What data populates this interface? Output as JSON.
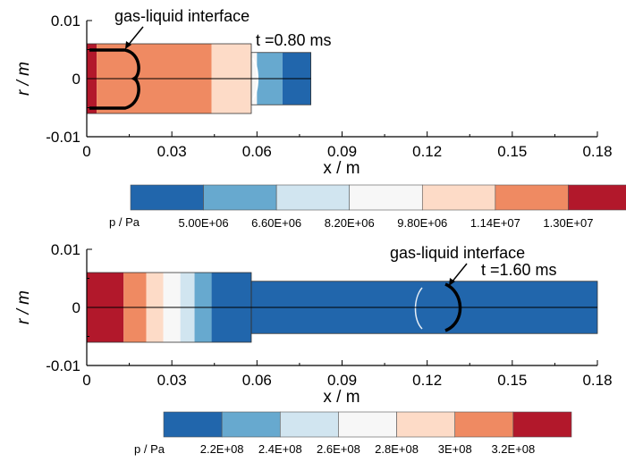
{
  "chart_data": [
    {
      "type": "heatmap",
      "xlabel": "x / m",
      "ylabel": "r / m",
      "xticks": [
        "0",
        "0.03",
        "0.06",
        "0.09",
        "0.12",
        "0.15",
        "0.18"
      ],
      "yticks": [
        "0.01",
        "0",
        "-0.01"
      ],
      "xlim": [
        0,
        0.18
      ],
      "ylim": [
        -0.01,
        0.01
      ],
      "time_label": "t =0.80 ms",
      "annotation": "gas-liquid interface",
      "colorbar": {
        "label": "p / Pa",
        "labels": [
          "5.00E+06",
          "6.60E+06",
          "8.20E+06",
          "9.80E+06",
          "1.14E+07",
          "1.30E+07"
        ],
        "colors": [
          "#2166ac",
          "#67a9cf",
          "#d1e5f0",
          "#f7f7f7",
          "#fddbc7",
          "#ef8a62",
          "#b2182b"
        ]
      },
      "geometry_m": {
        "wide_section": {
          "x": [
            0,
            0.058
          ],
          "r": [
            -0.006,
            0.006
          ]
        },
        "narrow_section": {
          "x": [
            0.058,
            0.079
          ],
          "r": [
            -0.0045,
            0.0045
          ]
        }
      },
      "pressure_regions": [
        {
          "x": [
            0,
            0.0035
          ],
          "level": 6
        },
        {
          "x": [
            0.0035,
            0.044
          ],
          "level": 5
        },
        {
          "x": [
            0.044,
            0.058
          ],
          "level": 4
        },
        {
          "x": [
            0.058,
            0.06
          ],
          "level": 3
        },
        {
          "x": [
            0.06,
            0.069
          ],
          "level": 1
        },
        {
          "x": [
            0.069,
            0.079
          ],
          "level": 0
        }
      ]
    },
    {
      "type": "heatmap",
      "xlabel": "x / m",
      "ylabel": "r / m",
      "xticks": [
        "0",
        "0.03",
        "0.06",
        "0.09",
        "0.12",
        "0.15",
        "0.18"
      ],
      "yticks": [
        "0.01",
        "0",
        "-0.01"
      ],
      "xlim": [
        0,
        0.18
      ],
      "ylim": [
        -0.01,
        0.01
      ],
      "time_label": "t =1.60 ms",
      "annotation": "gas-liquid interface",
      "colorbar": {
        "label": "p / Pa",
        "labels": [
          "2.2E+08",
          "2.4E+08",
          "2.6E+08",
          "2.8E+08",
          "3E+08",
          "3.2E+08"
        ],
        "colors": [
          "#2166ac",
          "#67a9cf",
          "#d1e5f0",
          "#f7f7f7",
          "#fddbc7",
          "#ef8a62",
          "#b2182b"
        ]
      },
      "geometry_m": {
        "wide_section": {
          "x": [
            0,
            0.058
          ],
          "r": [
            -0.006,
            0.006
          ]
        },
        "narrow_section": {
          "x": [
            0.058,
            0.18
          ],
          "r": [
            -0.0045,
            0.0045
          ]
        }
      },
      "pressure_regions": [
        {
          "x": [
            0,
            0.013
          ],
          "level": 6
        },
        {
          "x": [
            0.013,
            0.021
          ],
          "level": 5
        },
        {
          "x": [
            0.021,
            0.027
          ],
          "level": 4
        },
        {
          "x": [
            0.027,
            0.033
          ],
          "level": 3
        },
        {
          "x": [
            0.033,
            0.038
          ],
          "level": 2
        },
        {
          "x": [
            0.038,
            0.044
          ],
          "level": 1
        },
        {
          "x": [
            0.044,
            0.18
          ],
          "level": 0
        }
      ]
    }
  ]
}
